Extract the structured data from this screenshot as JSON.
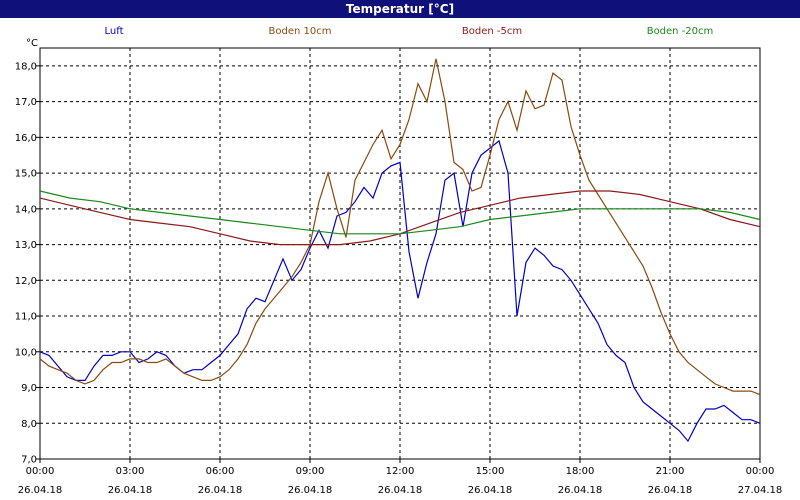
{
  "title": "Temperatur [°C]",
  "chart_data": {
    "type": "line",
    "ylabel": "°C",
    "ylim": [
      7.0,
      18.5
    ],
    "xlim": [
      0,
      24
    ],
    "yticks": [
      "7,0",
      "8,0",
      "9,0",
      "10,0",
      "11,0",
      "12,0",
      "13,0",
      "14,0",
      "15,0",
      "16,0",
      "17,0",
      "18,0"
    ],
    "xticks": [
      {
        "time": "00:00",
        "date": "26.04.18"
      },
      {
        "time": "03:00",
        "date": "26.04.18"
      },
      {
        "time": "06:00",
        "date": "26.04.18"
      },
      {
        "time": "09:00",
        "date": "26.04.18"
      },
      {
        "time": "12:00",
        "date": "26.04.18"
      },
      {
        "time": "15:00",
        "date": "26.04.18"
      },
      {
        "time": "18:00",
        "date": "26.04.18"
      },
      {
        "time": "21:00",
        "date": "26.04.18"
      },
      {
        "time": "00:00",
        "date": "27.04.18"
      }
    ],
    "grid": true,
    "legend_position": "top",
    "series": [
      {
        "name": "Luft",
        "color": "#0000c8",
        "x": [
          0,
          0.3,
          0.6,
          0.9,
          1.2,
          1.5,
          1.8,
          2.1,
          2.4,
          2.7,
          3.0,
          3.3,
          3.6,
          3.9,
          4.2,
          4.5,
          4.8,
          5.1,
          5.4,
          5.7,
          6.0,
          6.3,
          6.6,
          6.9,
          7.2,
          7.5,
          7.8,
          8.1,
          8.4,
          8.7,
          9.0,
          9.3,
          9.6,
          9.9,
          10.2,
          10.5,
          10.8,
          11.1,
          11.4,
          11.7,
          12.0,
          12.3,
          12.6,
          12.9,
          13.2,
          13.5,
          13.8,
          14.1,
          14.4,
          14.7,
          15.0,
          15.3,
          15.6,
          15.9,
          16.2,
          16.5,
          16.8,
          17.1,
          17.4,
          17.7,
          18.0,
          18.3,
          18.6,
          18.9,
          19.2,
          19.5,
          19.8,
          20.1,
          20.4,
          20.7,
          21.0,
          21.3,
          21.6,
          21.9,
          22.2,
          22.5,
          22.8,
          23.1,
          23.4,
          23.7,
          24.0
        ],
        "y": [
          10.0,
          9.9,
          9.6,
          9.3,
          9.2,
          9.2,
          9.6,
          9.9,
          9.9,
          10.0,
          10.0,
          9.7,
          9.8,
          10.0,
          9.9,
          9.6,
          9.4,
          9.5,
          9.5,
          9.7,
          9.9,
          10.2,
          10.5,
          11.2,
          11.5,
          11.4,
          12.0,
          12.6,
          12.0,
          12.3,
          12.9,
          13.4,
          12.9,
          13.8,
          13.9,
          14.2,
          14.6,
          14.3,
          15.0,
          15.2,
          15.3,
          12.8,
          11.5,
          12.5,
          13.3,
          14.8,
          15.0,
          13.5,
          15.0,
          15.5,
          15.7,
          15.9,
          15.0,
          11.0,
          12.5,
          12.9,
          12.7,
          12.4,
          12.3,
          12.0,
          11.6,
          11.2,
          10.8,
          10.2,
          9.9,
          9.7,
          9.0,
          8.6,
          8.4,
          8.2,
          8.0,
          7.8,
          7.5,
          8.0,
          8.4,
          8.4,
          8.5,
          8.3,
          8.1,
          8.1,
          8.0
        ]
      },
      {
        "name": "Boden 10cm",
        "color": "#8b4a0f",
        "x": [
          0,
          0.3,
          0.6,
          0.9,
          1.2,
          1.5,
          1.8,
          2.1,
          2.4,
          2.7,
          3.0,
          3.3,
          3.6,
          3.9,
          4.2,
          4.5,
          4.8,
          5.1,
          5.4,
          5.7,
          6.0,
          6.3,
          6.6,
          6.9,
          7.2,
          7.5,
          7.8,
          8.1,
          8.4,
          8.7,
          9.0,
          9.3,
          9.6,
          9.9,
          10.2,
          10.5,
          10.8,
          11.1,
          11.4,
          11.7,
          12.0,
          12.3,
          12.6,
          12.9,
          13.2,
          13.5,
          13.8,
          14.1,
          14.4,
          14.7,
          15.0,
          15.3,
          15.6,
          15.9,
          16.2,
          16.5,
          16.8,
          17.1,
          17.4,
          17.7,
          18.0,
          18.3,
          18.6,
          18.9,
          19.2,
          19.5,
          19.8,
          20.1,
          20.4,
          20.7,
          21.0,
          21.3,
          21.6,
          21.9,
          22.2,
          22.5,
          22.8,
          23.1,
          23.4,
          23.7,
          24.0
        ],
        "y": [
          9.8,
          9.6,
          9.5,
          9.4,
          9.2,
          9.1,
          9.2,
          9.5,
          9.7,
          9.7,
          9.8,
          9.8,
          9.7,
          9.7,
          9.8,
          9.6,
          9.4,
          9.3,
          9.2,
          9.2,
          9.3,
          9.5,
          9.8,
          10.2,
          10.8,
          11.2,
          11.5,
          11.8,
          12.1,
          12.5,
          13.0,
          14.2,
          15.0,
          14.0,
          13.2,
          14.8,
          15.3,
          15.8,
          16.2,
          15.4,
          15.8,
          16.5,
          17.5,
          17.0,
          18.2,
          17.0,
          15.3,
          15.1,
          14.5,
          14.6,
          15.5,
          16.5,
          17.0,
          16.2,
          17.3,
          16.8,
          16.9,
          17.8,
          17.6,
          16.3,
          15.5,
          14.8,
          14.4,
          14.0,
          13.6,
          13.2,
          12.8,
          12.4,
          11.8,
          11.1,
          10.5,
          10.0,
          9.7,
          9.5,
          9.3,
          9.1,
          9.0,
          8.9,
          8.9,
          8.9,
          8.8
        ]
      },
      {
        "name": "Boden -5cm",
        "color": "#8b1a1a",
        "x": [
          0,
          1,
          2,
          3,
          4,
          5,
          6,
          7,
          8,
          9,
          10,
          11,
          12,
          13,
          14,
          15,
          16,
          17,
          18,
          19,
          20,
          21,
          22,
          23,
          24
        ],
        "y": [
          14.3,
          14.1,
          13.9,
          13.7,
          13.6,
          13.5,
          13.3,
          13.1,
          13.0,
          13.0,
          13.0,
          13.1,
          13.3,
          13.6,
          13.9,
          14.1,
          14.3,
          14.4,
          14.5,
          14.5,
          14.4,
          14.2,
          14.0,
          13.7,
          13.5
        ]
      },
      {
        "name": "Boden -20cm",
        "color": "#1a8a1a",
        "x": [
          0,
          1,
          2,
          3,
          4,
          5,
          6,
          7,
          8,
          9,
          10,
          11,
          12,
          13,
          14,
          15,
          16,
          17,
          18,
          19,
          20,
          21,
          22,
          23,
          24
        ],
        "y": [
          14.5,
          14.3,
          14.2,
          14.0,
          13.9,
          13.8,
          13.7,
          13.6,
          13.5,
          13.4,
          13.3,
          13.3,
          13.3,
          13.4,
          13.5,
          13.7,
          13.8,
          13.9,
          14.0,
          14.0,
          14.0,
          14.0,
          14.0,
          13.9,
          13.7
        ]
      }
    ]
  }
}
